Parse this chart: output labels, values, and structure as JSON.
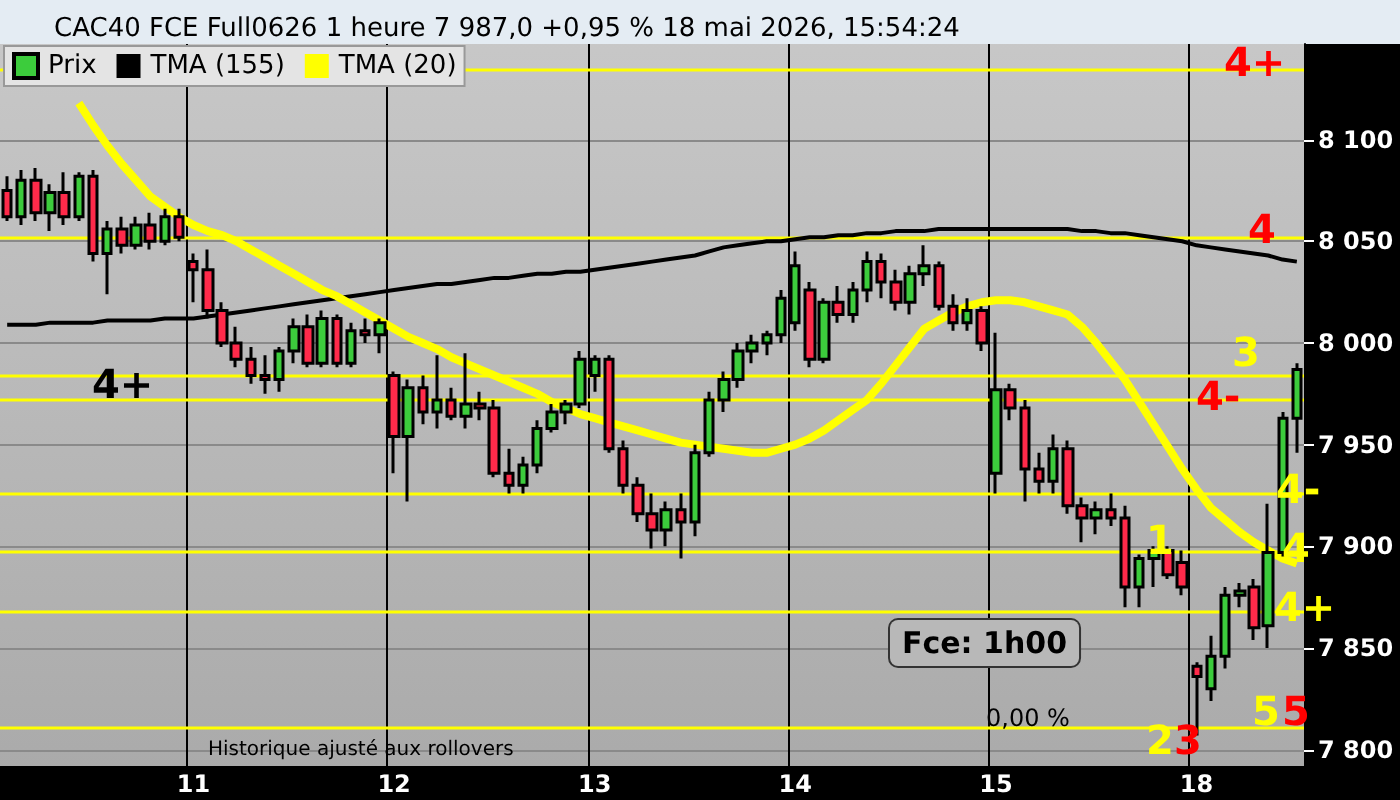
{
  "chart_data": {
    "type": "candlestick",
    "title": "CAC40 FCE Full0626 1 heure 7 987,0 +0,95 % 18 mai 2026, 15:54:24",
    "categories": [
      null,
      null,
      null,
      null,
      null,
      null,
      null,
      null,
      null,
      null,
      null,
      null,
      null,
      "11",
      null,
      null,
      null,
      null,
      null,
      null,
      null,
      null,
      null,
      null,
      null,
      null,
      null,
      "12",
      null,
      null,
      null,
      null,
      null,
      null,
      null,
      null,
      null,
      null,
      null,
      null,
      null,
      "13",
      null,
      null,
      null,
      null,
      null,
      null,
      null,
      null,
      null,
      null,
      null,
      null,
      null,
      "14",
      null,
      null,
      null,
      null,
      null,
      null,
      null,
      null,
      null,
      null,
      null,
      null,
      null,
      "15",
      null,
      null,
      null,
      null,
      null,
      null,
      null,
      null,
      null,
      null,
      null,
      null,
      null,
      "18",
      null,
      null,
      null,
      null,
      null,
      null,
      null
    ],
    "series": [
      {
        "name": "Prix",
        "ohlc": [
          [
            8075,
            8082,
            8060,
            8062
          ],
          [
            8062,
            8085,
            8058,
            8080
          ],
          [
            8080,
            8086,
            8060,
            8064
          ],
          [
            8064,
            8078,
            8055,
            8074
          ],
          [
            8074,
            8084,
            8058,
            8062
          ],
          [
            8062,
            8084,
            8060,
            8082
          ],
          [
            8082,
            8085,
            8040,
            8044
          ],
          [
            8044,
            8060,
            8024,
            8056
          ],
          [
            8056,
            8062,
            8044,
            8048
          ],
          [
            8048,
            8062,
            8046,
            8058
          ],
          [
            8058,
            8064,
            8046,
            8050
          ],
          [
            8050,
            8066,
            8048,
            8062
          ],
          [
            8062,
            8066,
            8050,
            8052
          ],
          [
            8040,
            8044,
            8020,
            8036
          ],
          [
            8036,
            8046,
            8012,
            8016
          ],
          [
            8016,
            8020,
            7998,
            8000
          ],
          [
            8000,
            8008,
            7988,
            7992
          ],
          [
            7992,
            7998,
            7980,
            7984
          ],
          [
            7984,
            7994,
            7975,
            7982
          ],
          [
            7982,
            7998,
            7976,
            7996
          ],
          [
            7996,
            8012,
            7990,
            8008
          ],
          [
            8008,
            8014,
            7988,
            7990
          ],
          [
            7990,
            8016,
            7988,
            8012
          ],
          [
            8012,
            8014,
            7988,
            7990
          ],
          [
            7990,
            8010,
            7988,
            8006
          ],
          [
            8006,
            8012,
            8000,
            8004
          ],
          [
            8004,
            8012,
            7995,
            8010
          ],
          [
            7984,
            7986,
            7936,
            7954
          ],
          [
            7954,
            7982,
            7922,
            7978
          ],
          [
            7978,
            7984,
            7960,
            7966
          ],
          [
            7966,
            7994,
            7958,
            7972
          ],
          [
            7972,
            7978,
            7962,
            7964
          ],
          [
            7964,
            7995,
            7958,
            7970
          ],
          [
            7970,
            7976,
            7962,
            7968
          ],
          [
            7968,
            7972,
            7934,
            7936
          ],
          [
            7936,
            7948,
            7926,
            7930
          ],
          [
            7930,
            7944,
            7926,
            7940
          ],
          [
            7940,
            7962,
            7936,
            7958
          ],
          [
            7958,
            7970,
            7956,
            7966
          ],
          [
            7966,
            7972,
            7960,
            7970
          ],
          [
            7970,
            7996,
            7968,
            7992
          ],
          [
            7984,
            7994,
            7976,
            7992
          ],
          [
            7992,
            7994,
            7946,
            7948
          ],
          [
            7948,
            7952,
            7926,
            7930
          ],
          [
            7930,
            7934,
            7912,
            7916
          ],
          [
            7916,
            7926,
            7899,
            7908
          ],
          [
            7908,
            7922,
            7900,
            7918
          ],
          [
            7918,
            7926,
            7894,
            7912
          ],
          [
            7912,
            7950,
            7905,
            7946
          ],
          [
            7946,
            7976,
            7944,
            7972
          ],
          [
            7972,
            7986,
            7966,
            7982
          ],
          [
            7982,
            8000,
            7978,
            7996
          ],
          [
            7996,
            8004,
            7990,
            8000
          ],
          [
            8000,
            8006,
            7994,
            8004
          ],
          [
            8004,
            8026,
            8000,
            8022
          ],
          [
            8010,
            8045,
            8006,
            8038
          ],
          [
            8026,
            8030,
            7988,
            7992
          ],
          [
            7992,
            8022,
            7990,
            8020
          ],
          [
            8020,
            8028,
            8010,
            8014
          ],
          [
            8014,
            8030,
            8010,
            8026
          ],
          [
            8026,
            8045,
            8020,
            8040
          ],
          [
            8040,
            8044,
            8022,
            8030
          ],
          [
            8030,
            8036,
            8016,
            8020
          ],
          [
            8020,
            8038,
            8014,
            8034
          ],
          [
            8034,
            8048,
            8028,
            8038
          ],
          [
            8038,
            8040,
            8016,
            8018
          ],
          [
            8018,
            8024,
            8006,
            8010
          ],
          [
            8010,
            8022,
            8006,
            8016
          ],
          [
            8016,
            8018,
            7996,
            8000
          ],
          [
            7936,
            8005,
            7926,
            7977
          ],
          [
            7977,
            7980,
            7962,
            7968
          ],
          [
            7968,
            7972,
            7922,
            7938
          ],
          [
            7938,
            7946,
            7926,
            7932
          ],
          [
            7932,
            7955,
            7926,
            7948
          ],
          [
            7948,
            7952,
            7916,
            7920
          ],
          [
            7920,
            7924,
            7902,
            7914
          ],
          [
            7914,
            7922,
            7906,
            7918
          ],
          [
            7918,
            7926,
            7910,
            7914
          ],
          [
            7914,
            7920,
            7870,
            7880
          ],
          [
            7880,
            7896,
            7870,
            7894
          ],
          [
            7894,
            7900,
            7880,
            7898
          ],
          [
            7898,
            7900,
            7884,
            7886
          ],
          [
            7892,
            7898,
            7876,
            7880
          ],
          [
            7841,
            7843,
            7807,
            7836
          ],
          [
            7830,
            7856,
            7824,
            7846
          ],
          [
            7846,
            7880,
            7840,
            7876
          ],
          [
            7876,
            7882,
            7870,
            7878
          ],
          [
            7880,
            7884,
            7854,
            7860
          ],
          [
            7861,
            7921,
            7850,
            7897
          ],
          [
            7897,
            7966,
            7895,
            7963
          ],
          [
            7963,
            7990,
            7946,
            7987
          ]
        ],
        "colors": [
          "#ff2a4a",
          "#3ccc3c",
          "#ff2a4a",
          "#3ccc3c",
          "#ff2a4a",
          "#3ccc3c",
          "#ff2a4a",
          "#3ccc3c",
          "#ff2a4a",
          "#3ccc3c",
          "#ff2a4a",
          "#3ccc3c",
          "#ff2a4a",
          "#ff2a4a",
          "#ff2a4a",
          "#ff2a4a",
          "#ff2a4a",
          "#ff2a4a",
          "#ff2a4a",
          "#3ccc3c",
          "#3ccc3c",
          "#ff2a4a",
          "#3ccc3c",
          "#ff2a4a",
          "#3ccc3c",
          "#ff2a4a",
          "#3ccc3c",
          "#ff2a4a",
          "#3ccc3c",
          "#ff2a4a",
          "#3ccc3c",
          "#ff2a4a",
          "#3ccc3c",
          "#ff2a4a",
          "#ff2a4a",
          "#ff2a4a",
          "#3ccc3c",
          "#3ccc3c",
          "#3ccc3c",
          "#3ccc3c",
          "#3ccc3c",
          "#3ccc3c",
          "#ff2a4a",
          "#ff2a4a",
          "#ff2a4a",
          "#ff2a4a",
          "#3ccc3c",
          "#ff2a4a",
          "#3ccc3c",
          "#3ccc3c",
          "#3ccc3c",
          "#3ccc3c",
          "#3ccc3c",
          "#3ccc3c",
          "#3ccc3c",
          "#3ccc3c",
          "#ff2a4a",
          "#3ccc3c",
          "#ff2a4a",
          "#3ccc3c",
          "#3ccc3c",
          "#ff2a4a",
          "#ff2a4a",
          "#3ccc3c",
          "#3ccc3c",
          "#ff2a4a",
          "#ff2a4a",
          "#3ccc3c",
          "#ff2a4a",
          "#3ccc3c",
          "#ff2a4a",
          "#ff2a4a",
          "#ff2a4a",
          "#3ccc3c",
          "#ff2a4a",
          "#ff2a4a",
          "#3ccc3c",
          "#ff2a4a",
          "#ff2a4a",
          "#3ccc3c",
          "#3ccc3c",
          "#ff2a4a",
          "#ff2a4a",
          "#ff2a4a",
          "#3ccc3c",
          "#3ccc3c",
          "#3ccc3c",
          "#ff2a4a",
          "#3ccc3c",
          "#3ccc3c",
          "#3ccc3c"
        ]
      },
      {
        "name": "TMA (155)",
        "type": "line",
        "color": "#000000",
        "values": [
          8009,
          8009,
          8009,
          8010,
          8010,
          8010,
          8010,
          8011,
          8011,
          8011,
          8011,
          8012,
          8012,
          8012,
          8013,
          8014,
          8015,
          8016,
          8017,
          8018,
          8019,
          8020,
          8021,
          8022,
          8023,
          8024,
          8025,
          8026,
          8027,
          8028,
          8029,
          8029,
          8030,
          8031,
          8032,
          8032,
          8033,
          8034,
          8034,
          8035,
          8035,
          8036,
          8037,
          8038,
          8039,
          8040,
          8041,
          8042,
          8043,
          8045,
          8047,
          8048,
          8049,
          8050,
          8050,
          8051,
          8052,
          8052,
          8053,
          8053,
          8054,
          8054,
          8055,
          8055,
          8055,
          8056,
          8056,
          8056,
          8056,
          8056,
          8056,
          8056,
          8056,
          8056,
          8056,
          8055,
          8055,
          8054,
          8054,
          8053,
          8052,
          8051,
          8050,
          8048,
          8047,
          8046,
          8045,
          8044,
          8043,
          8041,
          8040
        ]
      },
      {
        "name": "TMA (20)",
        "type": "line",
        "color": "#ffff00",
        "values": [
          null,
          null,
          null,
          null,
          null,
          8118,
          8107,
          8097,
          8088,
          8080,
          8072,
          8067,
          8062,
          8058,
          8055,
          8053,
          8050,
          8046,
          8042,
          8038,
          8034,
          8030,
          8026,
          8023,
          8019,
          8015,
          8011,
          8007,
          8003,
          8000,
          7997,
          7993,
          7990,
          7987,
          7984,
          7981,
          7978,
          7975,
          7971,
          7968,
          7965,
          7963,
          7961,
          7959,
          7957,
          7955,
          7953,
          7951,
          7950,
          7949,
          7948,
          7947,
          7946,
          7946,
          7948,
          7950,
          7953,
          7957,
          7962,
          7967,
          7972,
          7980,
          7989,
          7998,
          8007,
          8011,
          8015,
          8018,
          8020,
          8021,
          8021,
          8020,
          8018,
          8016,
          8014,
          8008,
          8000,
          7991,
          7982,
          7971,
          7960,
          7949,
          7938,
          7928,
          7919,
          7913,
          7907,
          7902,
          7898,
          7894,
          7891.6
        ]
      }
    ],
    "ylim": [
      7792,
      8147
    ],
    "yticks": [
      {
        "value": 7800,
        "label": "7 800"
      },
      {
        "value": 7850,
        "label": "7 850"
      },
      {
        "value": 7900,
        "label": "7 900"
      },
      {
        "value": 7950,
        "label": "7 950"
      },
      {
        "value": 8000,
        "label": "8 000"
      },
      {
        "value": 8050,
        "label": "8 050"
      },
      {
        "value": 8100,
        "label": "8 100"
      }
    ],
    "grid": true,
    "legend": "top left",
    "marker": "none",
    "ref_lines": [
      {
        "axis": "y",
        "value": 8134,
        "color": "#ffff00"
      },
      {
        "axis": "y",
        "value": 8052,
        "color": "#ffff00"
      },
      {
        "axis": "y",
        "value": 7984,
        "color": "#ffff00"
      },
      {
        "axis": "y",
        "value": 7972,
        "color": "#ffff00"
      },
      {
        "axis": "y",
        "value": 7926,
        "color": "#ffff00"
      },
      {
        "axis": "y",
        "value": 7897,
        "color": "#ffff00"
      },
      {
        "axis": "y",
        "value": 7868,
        "color": "#ffff00"
      },
      {
        "axis": "y",
        "value": 7811,
        "color": "#ffff00"
      }
    ],
    "annotations": [
      {
        "text": "4+",
        "y": 8134
      },
      {
        "text": "4",
        "y": 8052
      },
      {
        "text": "3",
        "y": 7984
      },
      {
        "text": "4-",
        "y": 7972
      },
      {
        "text": "4-",
        "y": 7926
      },
      {
        "text": "4",
        "y": 7897
      },
      {
        "text": "4+",
        "y": 7868
      },
      {
        "text": "5",
        "y": 7811
      },
      {
        "text": "5",
        "y": 7811
      },
      {
        "text": "4+",
        "y": 7984
      },
      {
        "text": "1",
        "y": 7897
      },
      "2",
      "3",
      "Fce: 1h00",
      "0,00 %",
      "Historique ajusté aux rollovers"
    ]
  }
}
